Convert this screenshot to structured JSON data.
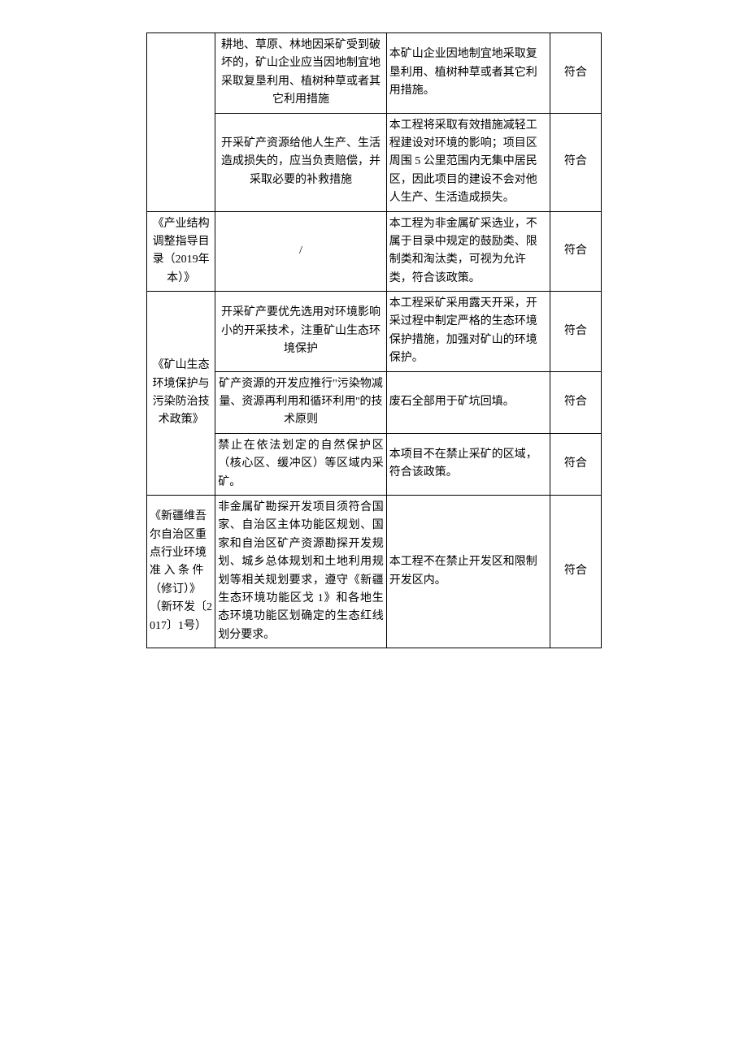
{
  "table": {
    "rows": [
      {
        "policy": "",
        "policySpan": 2,
        "req": "耕地、草原、林地因采矿受到破坏的，矿山企业应当因地制宜地采取复垦利用、植树种草或者其它利用措施",
        "proj": "本矿山企业因地制宜地采取复垦利用、植树种草或者其它利用措施。",
        "result": "符合"
      },
      {
        "policy": null,
        "req": "开采矿产资源给他人生产、生活造成损失的，应当负责赔偿，并采取必要的补救措施",
        "proj": "本工程将采取有效措施减轻工程建设对环境的影响；项目区周围 5 公里范围内无集中居民区，因此项目的建设不会对他人生产、生活造成损失。",
        "result": "符合"
      },
      {
        "policy": "《产业结构调整指导目录（2019年本）》",
        "policySpan": 1,
        "req": "/",
        "proj": "本工程为非金属矿采选业，不属于目录中规定的鼓励类、限制类和淘汰类，可视为允许类，符合该政策。",
        "result": "符合"
      },
      {
        "policy": "《矿山生态环境保护与污染防治技术政策》",
        "policySpan": 3,
        "req": "开采矿产要优先选用对环境影响小的开采技术，注重矿山生态环境保护",
        "proj": "本工程采矿采用露天开采，开采过程中制定严格的生态环境保护措施，加强对矿山的环境保护。",
        "result": "符合"
      },
      {
        "policy": null,
        "req": "矿产资源的开发应推行\"污染物减量、资源再利用和循环利用''的技术原则",
        "proj": "废石全部用于矿坑回填。",
        "result": "符合"
      },
      {
        "policy": null,
        "req": "禁止在依法划定的自然保护区（核心区、缓冲区）等区域内采矿。",
        "reqAlign": "left",
        "proj": "本项目不在禁止采矿的区域，符合该政策。",
        "result": "符合"
      },
      {
        "policy": "《新疆维吾尔自治区重点行业环境准\n入 条 件（修订）》（新环发〔2017〕1号）",
        "policySpan": 1,
        "policyAlign": "left",
        "req": "非金属矿勘探开发项目须符合国家、自治区主体功能区规划、国家和自治区矿产资源勘探开发规划、城乡总体规划和土地利用规划等相关规划要求，遵守《新疆生态环境功能区戈 1》和各地生态环境功能区划确定的生态红线划分要求。",
        "reqAlign": "left",
        "proj": "本工程不在禁止开发区和限制开发区内。",
        "result": "符合"
      }
    ]
  }
}
